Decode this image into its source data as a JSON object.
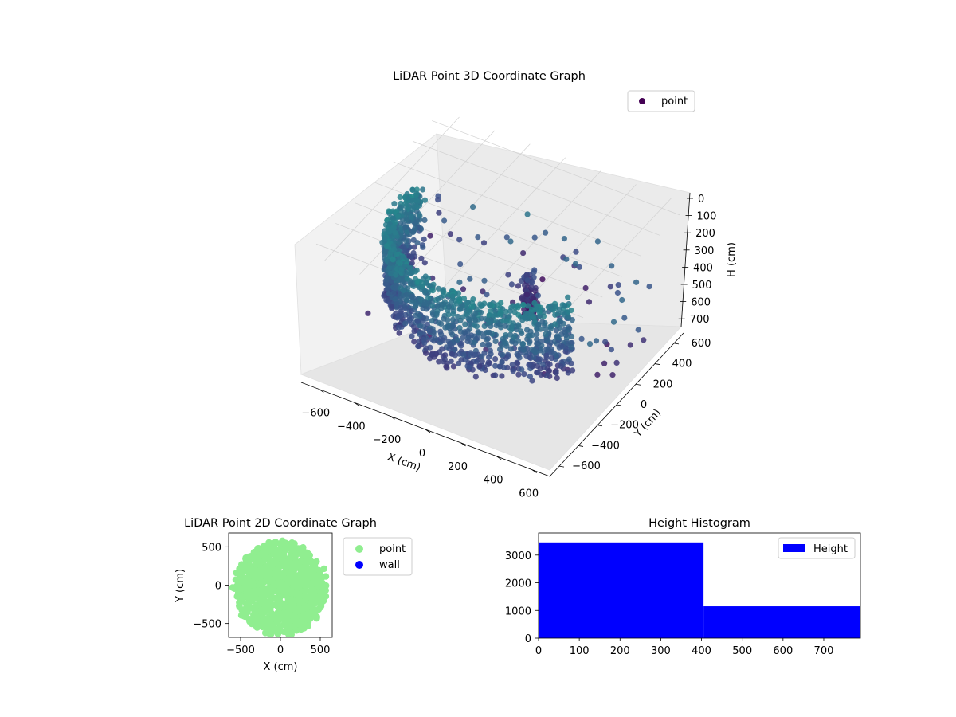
{
  "chart_data": [
    {
      "type": "scatter",
      "projection": "3d",
      "title": "LiDAR Point 3D Coordinate Graph",
      "xlabel": "X (cm)",
      "ylabel": "Y (cm)",
      "zlabel": "H (cm)",
      "xlim": [
        -700,
        700
      ],
      "ylim": [
        -700,
        700
      ],
      "zlim": [
        0,
        750
      ],
      "z_inverted": true,
      "xticks": [
        "−600",
        "−400",
        "−200",
        "0",
        "200",
        "400",
        "600"
      ],
      "yticks": [
        "−600",
        "−400",
        "−200",
        "0",
        "200",
        "400",
        "600"
      ],
      "zticks": [
        "0",
        "100",
        "200",
        "300",
        "400",
        "500",
        "600",
        "700"
      ],
      "legend": {
        "placement": "top-right",
        "entries": [
          "point"
        ]
      },
      "colormap": "viridis",
      "grid": true,
      "description_of_data": "Dense ring of points (radius ~550 cm) forming a curved wall from about 200 cm to 600 cm in height, plus a tall column near the center and scattered outliers.",
      "series": [
        {
          "name": "point",
          "color": "#440154"
        }
      ]
    },
    {
      "type": "scatter",
      "title": "LiDAR Point 2D Coordinate Graph",
      "xlabel": "X (cm)",
      "ylabel": "Y (cm)",
      "xlim": [
        -650,
        650
      ],
      "ylim": [
        -680,
        680
      ],
      "xticks": [
        "−500",
        "0",
        "500"
      ],
      "yticks": [
        "−500",
        "0",
        "500"
      ],
      "legend": {
        "placement": "outside-right",
        "entries": [
          "point",
          "wall"
        ]
      },
      "series": [
        {
          "name": "point",
          "color": "#90ee90"
        },
        {
          "name": "wall",
          "color": "#0000ff"
        }
      ]
    },
    {
      "type": "bar",
      "title": "Height Histogram",
      "legend": {
        "placement": "top-right",
        "entries": [
          "Height"
        ]
      },
      "xlim": [
        0,
        790
      ],
      "ylim": [
        0,
        3800
      ],
      "xticks": [
        "0",
        "100",
        "200",
        "300",
        "400",
        "500",
        "600",
        "700"
      ],
      "yticks": [
        "0",
        "1000",
        "2000",
        "3000"
      ],
      "bins": [
        {
          "x0": 0,
          "x1": 405,
          "count": 3460
        },
        {
          "x0": 405,
          "x1": 790,
          "count": 1150
        }
      ],
      "color": "#0000ff"
    }
  ]
}
